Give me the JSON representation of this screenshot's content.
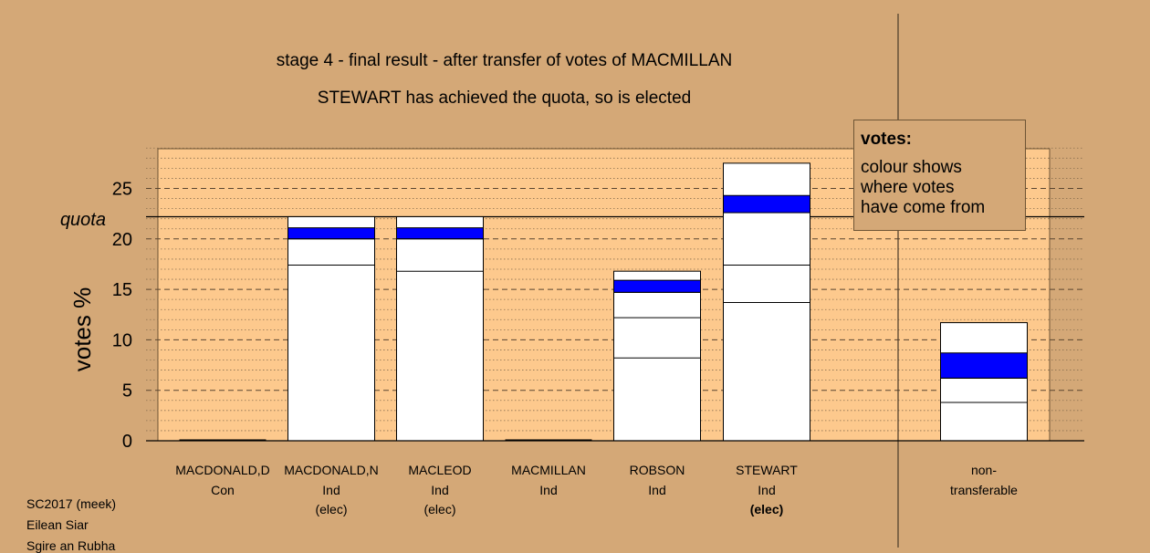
{
  "chart_data": {
    "type": "bar",
    "title": "stage 4 - final result - after transfer of votes of MACMILLAN",
    "subtitle": "STEWART has achieved the quota, so is elected",
    "ylabel": "votes %",
    "ylim": [
      0,
      29
    ],
    "yticks": [
      0,
      5,
      10,
      15,
      20,
      25
    ],
    "quota": 22.2,
    "quota_label": "quota",
    "candidates": [
      {
        "name": "MACDONALD,D",
        "party": "Con",
        "status": "",
        "segments": [],
        "transferred": null
      },
      {
        "name": "MACDONALD,N",
        "party": "Ind",
        "status": "(elec)",
        "segments": [
          17.4,
          20.0
        ],
        "transferred": [
          20.0,
          21.1
        ],
        "total": 22.2
      },
      {
        "name": "MACLEOD",
        "party": "Ind",
        "status": "(elec)",
        "segments": [
          16.8,
          20.0
        ],
        "transferred": [
          20.0,
          21.1
        ],
        "total": 22.2
      },
      {
        "name": "MACMILLAN",
        "party": "Ind",
        "status": "",
        "segments": [],
        "transferred": null
      },
      {
        "name": "ROBSON",
        "party": "Ind",
        "status": "",
        "segments": [
          8.2,
          12.2,
          14.7
        ],
        "transferred": [
          14.7,
          15.9
        ],
        "total": 16.8
      },
      {
        "name": "STEWART",
        "party": "Ind",
        "status": "(elec)",
        "segments": [
          13.7,
          17.4,
          22.6
        ],
        "transferred": [
          22.6,
          24.3
        ],
        "total": 27.5
      },
      {
        "name": "non-",
        "party": "transferable",
        "status": "",
        "segments": [
          3.8,
          6.2
        ],
        "transferred": [
          6.2,
          8.7
        ],
        "total": 11.7
      }
    ],
    "colors": {
      "background": "#d4a877",
      "plot_area": "#fdc98d",
      "bar": "#ffffff",
      "transferred": "#0000ff",
      "grid_major": "#5a4530",
      "grid_minor": "#8a7050"
    }
  },
  "legend": {
    "title": "votes:",
    "lines": [
      "colour shows",
      "where votes",
      "have come from"
    ]
  },
  "footer": [
    "SC2017 (meek)",
    "Eilean Siar",
    "Sgire an Rubha"
  ]
}
